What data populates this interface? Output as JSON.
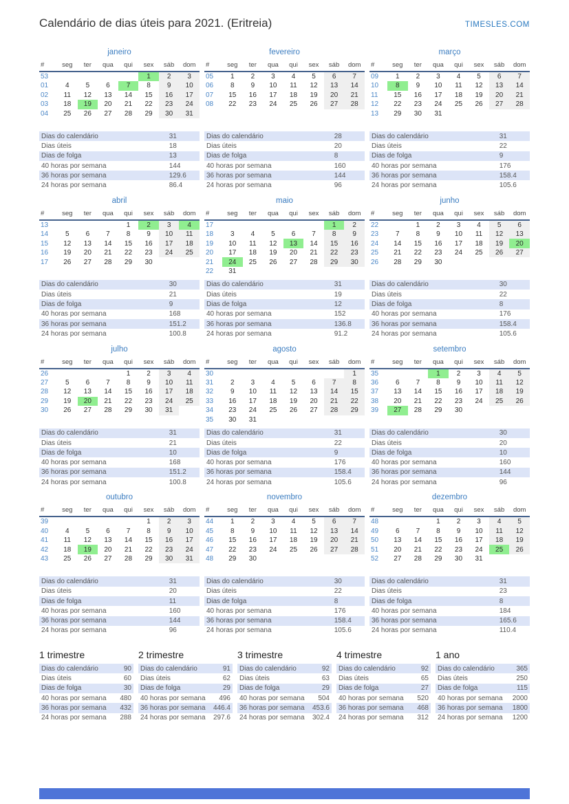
{
  "header": {
    "title": "Calendário de dias úteis para 2021. (Eritreia)",
    "site": "TIMESLES.COM"
  },
  "weekday_headers": [
    "#",
    "seg",
    "ter",
    "qua",
    "qui",
    "sex",
    "sáb",
    "dom"
  ],
  "stats_labels": [
    "Dias do calendário",
    "Dias úteis",
    "Dias de folga",
    "40 horas por semana",
    "36 horas por semana",
    "24 horas por semana"
  ],
  "months": [
    {
      "name": "janeiro",
      "holidays": [
        1,
        7,
        19
      ],
      "stats": [
        "31",
        "18",
        "13",
        "144",
        "129.6",
        "86.4"
      ],
      "weeks": [
        {
          "w": "53",
          "d": [
            "",
            "",
            "",
            "",
            "1",
            "2",
            "3"
          ]
        },
        {
          "w": "01",
          "d": [
            "4",
            "5",
            "6",
            "7",
            "8",
            "9",
            "10"
          ]
        },
        {
          "w": "02",
          "d": [
            "11",
            "12",
            "13",
            "14",
            "15",
            "16",
            "17"
          ]
        },
        {
          "w": "03",
          "d": [
            "18",
            "19",
            "20",
            "21",
            "22",
            "23",
            "24"
          ]
        },
        {
          "w": "04",
          "d": [
            "25",
            "26",
            "27",
            "28",
            "29",
            "30",
            "31"
          ]
        }
      ]
    },
    {
      "name": "fevereiro",
      "holidays": [],
      "stats": [
        "28",
        "20",
        "8",
        "160",
        "144",
        "96"
      ],
      "weeks": [
        {
          "w": "05",
          "d": [
            "1",
            "2",
            "3",
            "4",
            "5",
            "6",
            "7"
          ]
        },
        {
          "w": "06",
          "d": [
            "8",
            "9",
            "10",
            "11",
            "12",
            "13",
            "14"
          ]
        },
        {
          "w": "07",
          "d": [
            "15",
            "16",
            "17",
            "18",
            "19",
            "20",
            "21"
          ]
        },
        {
          "w": "08",
          "d": [
            "22",
            "23",
            "24",
            "25",
            "26",
            "27",
            "28"
          ]
        }
      ]
    },
    {
      "name": "março",
      "holidays": [
        8
      ],
      "stats": [
        "31",
        "22",
        "9",
        "176",
        "158.4",
        "105.6"
      ],
      "weeks": [
        {
          "w": "09",
          "d": [
            "1",
            "2",
            "3",
            "4",
            "5",
            "6",
            "7"
          ]
        },
        {
          "w": "10",
          "d": [
            "8",
            "9",
            "10",
            "11",
            "12",
            "13",
            "14"
          ]
        },
        {
          "w": "11",
          "d": [
            "15",
            "16",
            "17",
            "18",
            "19",
            "20",
            "21"
          ]
        },
        {
          "w": "12",
          "d": [
            "22",
            "23",
            "24",
            "25",
            "26",
            "27",
            "28"
          ]
        },
        {
          "w": "13",
          "d": [
            "29",
            "30",
            "31",
            "",
            "",
            "",
            ""
          ]
        }
      ]
    },
    {
      "name": "abril",
      "holidays": [
        2,
        4
      ],
      "stats": [
        "30",
        "21",
        "9",
        "168",
        "151.2",
        "100.8"
      ],
      "weeks": [
        {
          "w": "13",
          "d": [
            "",
            "",
            "",
            "1",
            "2",
            "3",
            "4"
          ]
        },
        {
          "w": "14",
          "d": [
            "5",
            "6",
            "7",
            "8",
            "9",
            "10",
            "11"
          ]
        },
        {
          "w": "15",
          "d": [
            "12",
            "13",
            "14",
            "15",
            "16",
            "17",
            "18"
          ]
        },
        {
          "w": "16",
          "d": [
            "19",
            "20",
            "21",
            "22",
            "23",
            "24",
            "25"
          ]
        },
        {
          "w": "17",
          "d": [
            "26",
            "27",
            "28",
            "29",
            "30",
            "",
            ""
          ]
        }
      ]
    },
    {
      "name": "maio",
      "holidays": [
        1,
        13,
        24
      ],
      "stats": [
        "31",
        "19",
        "12",
        "152",
        "136.8",
        "91.2"
      ],
      "weeks": [
        {
          "w": "17",
          "d": [
            "",
            "",
            "",
            "",
            "",
            "1",
            "2"
          ]
        },
        {
          "w": "18",
          "d": [
            "3",
            "4",
            "5",
            "6",
            "7",
            "8",
            "9"
          ]
        },
        {
          "w": "19",
          "d": [
            "10",
            "11",
            "12",
            "13",
            "14",
            "15",
            "16"
          ]
        },
        {
          "w": "20",
          "d": [
            "17",
            "18",
            "19",
            "20",
            "21",
            "22",
            "23"
          ]
        },
        {
          "w": "21",
          "d": [
            "24",
            "25",
            "26",
            "27",
            "28",
            "29",
            "30"
          ]
        },
        {
          "w": "22",
          "d": [
            "31",
            "",
            "",
            "",
            "",
            "",
            ""
          ]
        }
      ]
    },
    {
      "name": "junho",
      "holidays": [
        20
      ],
      "stats": [
        "30",
        "22",
        "8",
        "176",
        "158.4",
        "105.6"
      ],
      "weeks": [
        {
          "w": "22",
          "d": [
            "",
            "1",
            "2",
            "3",
            "4",
            "5",
            "6"
          ]
        },
        {
          "w": "23",
          "d": [
            "7",
            "8",
            "9",
            "10",
            "11",
            "12",
            "13"
          ]
        },
        {
          "w": "24",
          "d": [
            "14",
            "15",
            "16",
            "17",
            "18",
            "19",
            "20"
          ]
        },
        {
          "w": "25",
          "d": [
            "21",
            "22",
            "23",
            "24",
            "25",
            "26",
            "27"
          ]
        },
        {
          "w": "26",
          "d": [
            "28",
            "29",
            "30",
            "",
            "",
            "",
            ""
          ]
        }
      ]
    },
    {
      "name": "julho",
      "holidays": [
        20
      ],
      "stats": [
        "31",
        "21",
        "10",
        "168",
        "151.2",
        "100.8"
      ],
      "weeks": [
        {
          "w": "26",
          "d": [
            "",
            "",
            "",
            "1",
            "2",
            "3",
            "4"
          ]
        },
        {
          "w": "27",
          "d": [
            "5",
            "6",
            "7",
            "8",
            "9",
            "10",
            "11"
          ]
        },
        {
          "w": "28",
          "d": [
            "12",
            "13",
            "14",
            "15",
            "16",
            "17",
            "18"
          ]
        },
        {
          "w": "29",
          "d": [
            "19",
            "20",
            "21",
            "22",
            "23",
            "24",
            "25"
          ]
        },
        {
          "w": "30",
          "d": [
            "26",
            "27",
            "28",
            "29",
            "30",
            "31",
            ""
          ]
        }
      ]
    },
    {
      "name": "agosto",
      "holidays": [],
      "stats": [
        "31",
        "22",
        "9",
        "176",
        "158.4",
        "105.6"
      ],
      "weeks": [
        {
          "w": "30",
          "d": [
            "",
            "",
            "",
            "",
            "",
            "",
            "1"
          ]
        },
        {
          "w": "31",
          "d": [
            "2",
            "3",
            "4",
            "5",
            "6",
            "7",
            "8"
          ]
        },
        {
          "w": "32",
          "d": [
            "9",
            "10",
            "11",
            "12",
            "13",
            "14",
            "15"
          ]
        },
        {
          "w": "33",
          "d": [
            "16",
            "17",
            "18",
            "19",
            "20",
            "21",
            "22"
          ]
        },
        {
          "w": "34",
          "d": [
            "23",
            "24",
            "25",
            "26",
            "27",
            "28",
            "29"
          ]
        },
        {
          "w": "35",
          "d": [
            "30",
            "31",
            "",
            "",
            "",
            "",
            ""
          ]
        }
      ]
    },
    {
      "name": "setembro",
      "holidays": [
        1,
        27
      ],
      "stats": [
        "30",
        "20",
        "10",
        "160",
        "144",
        "96"
      ],
      "weeks": [
        {
          "w": "35",
          "d": [
            "",
            "",
            "1",
            "2",
            "3",
            "4",
            "5"
          ]
        },
        {
          "w": "36",
          "d": [
            "6",
            "7",
            "8",
            "9",
            "10",
            "11",
            "12"
          ]
        },
        {
          "w": "37",
          "d": [
            "13",
            "14",
            "15",
            "16",
            "17",
            "18",
            "19"
          ]
        },
        {
          "w": "38",
          "d": [
            "20",
            "21",
            "22",
            "23",
            "24",
            "25",
            "26"
          ]
        },
        {
          "w": "39",
          "d": [
            "27",
            "28",
            "29",
            "30",
            "",
            "",
            ""
          ]
        }
      ]
    },
    {
      "name": "outubro",
      "holidays": [
        19
      ],
      "stats": [
        "31",
        "20",
        "11",
        "160",
        "144",
        "96"
      ],
      "weeks": [
        {
          "w": "39",
          "d": [
            "",
            "",
            "",
            "",
            "1",
            "2",
            "3"
          ]
        },
        {
          "w": "40",
          "d": [
            "4",
            "5",
            "6",
            "7",
            "8",
            "9",
            "10"
          ]
        },
        {
          "w": "41",
          "d": [
            "11",
            "12",
            "13",
            "14",
            "15",
            "16",
            "17"
          ]
        },
        {
          "w": "42",
          "d": [
            "18",
            "19",
            "20",
            "21",
            "22",
            "23",
            "24"
          ]
        },
        {
          "w": "43",
          "d": [
            "25",
            "26",
            "27",
            "28",
            "29",
            "30",
            "31"
          ]
        }
      ]
    },
    {
      "name": "novembro",
      "holidays": [],
      "stats": [
        "30",
        "22",
        "8",
        "176",
        "158.4",
        "105.6"
      ],
      "weeks": [
        {
          "w": "44",
          "d": [
            "1",
            "2",
            "3",
            "4",
            "5",
            "6",
            "7"
          ]
        },
        {
          "w": "45",
          "d": [
            "8",
            "9",
            "10",
            "11",
            "12",
            "13",
            "14"
          ]
        },
        {
          "w": "46",
          "d": [
            "15",
            "16",
            "17",
            "18",
            "19",
            "20",
            "21"
          ]
        },
        {
          "w": "47",
          "d": [
            "22",
            "23",
            "24",
            "25",
            "26",
            "27",
            "28"
          ]
        },
        {
          "w": "48",
          "d": [
            "29",
            "30",
            "",
            "",
            "",
            "",
            ""
          ]
        }
      ]
    },
    {
      "name": "dezembro",
      "holidays": [
        25
      ],
      "stats": [
        "31",
        "23",
        "8",
        "184",
        "165.6",
        "110.4"
      ],
      "weeks": [
        {
          "w": "48",
          "d": [
            "",
            "",
            "1",
            "2",
            "3",
            "4",
            "5"
          ]
        },
        {
          "w": "49",
          "d": [
            "6",
            "7",
            "8",
            "9",
            "10",
            "11",
            "12"
          ]
        },
        {
          "w": "50",
          "d": [
            "13",
            "14",
            "15",
            "16",
            "17",
            "18",
            "19"
          ]
        },
        {
          "w": "51",
          "d": [
            "20",
            "21",
            "22",
            "23",
            "24",
            "25",
            "26"
          ]
        },
        {
          "w": "52",
          "d": [
            "27",
            "28",
            "29",
            "30",
            "31",
            "",
            ""
          ]
        }
      ]
    }
  ],
  "summaries": [
    {
      "title": "1 trimestre",
      "stats": [
        "90",
        "60",
        "30",
        "480",
        "432",
        "288"
      ]
    },
    {
      "title": "2 trimestre",
      "stats": [
        "91",
        "62",
        "29",
        "496",
        "446.4",
        "297.6"
      ]
    },
    {
      "title": "3 trimestre",
      "stats": [
        "92",
        "63",
        "29",
        "504",
        "453.6",
        "302.4"
      ]
    },
    {
      "title": "4 trimestre",
      "stats": [
        "92",
        "65",
        "27",
        "520",
        "468",
        "312"
      ]
    },
    {
      "title": "1 ano",
      "stats": [
        "365",
        "250",
        "115",
        "2000",
        "1800",
        "1200"
      ]
    }
  ],
  "colors": {
    "accent_blue": "#3a7cc0",
    "week_number_blue": "#4a86c6",
    "holiday_green": "#90ee90",
    "weekend_gray": "#efefef",
    "stats_row_blue": "#dce4f7",
    "header_rule": "#44618c",
    "footer_bar_blue": "#4e74d8",
    "site_link_blue": "#2878bf"
  }
}
